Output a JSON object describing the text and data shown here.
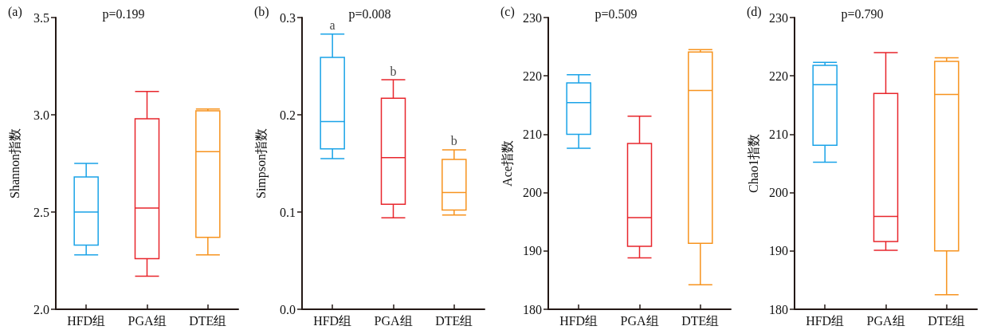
{
  "chart_data": [
    {
      "type": "box",
      "title": "p=0.199",
      "ylabel": "Shannon指数",
      "categories": [
        "HFD组",
        "PGA组",
        "DTE组"
      ],
      "colors": [
        "#1aa3e8",
        "#e8262c",
        "#f7931e"
      ],
      "boxes": [
        {
          "low": 2.28,
          "q1": 2.33,
          "median": 2.5,
          "q3": 2.68,
          "high": 2.75
        },
        {
          "low": 2.17,
          "q1": 2.26,
          "median": 2.52,
          "q3": 2.98,
          "high": 3.12
        },
        {
          "low": 2.28,
          "q1": 2.37,
          "median": 2.81,
          "q3": 3.02,
          "high": 3.03
        }
      ],
      "ylim": [
        2.0,
        3.5
      ],
      "yticks": [
        {
          "value": 2,
          "label": "2.0"
        },
        2.5,
        {
          "value": 3,
          "label": "3.0"
        },
        3.5
      ],
      "annotations": [
        "(a)"
      ]
    },
    {
      "type": "box",
      "title": "p=0.008",
      "ylabel": "Simpson指数",
      "categories": [
        "HFD组",
        "PGA组",
        "DTE组"
      ],
      "colors": [
        "#1aa3e8",
        "#e8262c",
        "#f7931e"
      ],
      "boxes": [
        {
          "low": 0.155,
          "q1": 0.165,
          "median": 0.193,
          "q3": 0.259,
          "high": 0.283
        },
        {
          "low": 0.094,
          "q1": 0.108,
          "median": 0.156,
          "q3": 0.217,
          "high": 0.236
        },
        {
          "low": 0.097,
          "q1": 0.102,
          "median": 0.12,
          "q3": 0.154,
          "high": 0.164
        }
      ],
      "ylim": [
        0,
        0.3
      ],
      "yticks": [
        {
          "value": 0,
          "label": "0.0"
        },
        0.1,
        0.2,
        0.3
      ],
      "annotations": [
        "(b)",
        {
          "text": "a",
          "x": "HFD组",
          "y": 0.283
        },
        {
          "text": "b",
          "x": "PGA组",
          "y": 0.236
        },
        {
          "text": "b",
          "x": "DTE组",
          "y": 0.164
        }
      ]
    },
    {
      "type": "box",
      "title": "p=0.509",
      "ylabel": "Ace指数",
      "categories": [
        "HFD组",
        "PGA组",
        "DTE组"
      ],
      "colors": [
        "#1aa3e8",
        "#e8262c",
        "#f7931e"
      ],
      "boxes": [
        {
          "low": 207.6,
          "q1": 210.0,
          "median": 215.4,
          "q3": 218.8,
          "high": 220.2
        },
        {
          "low": 188.8,
          "q1": 190.8,
          "median": 195.7,
          "q3": 208.4,
          "high": 213.1
        },
        {
          "low": 184.2,
          "q1": 191.3,
          "median": 217.5,
          "q3": 224.1,
          "high": 224.5
        }
      ],
      "ylim": [
        180,
        230
      ],
      "yticks": [
        180,
        190,
        200,
        210,
        220,
        230
      ],
      "annotations": [
        "(c)"
      ]
    },
    {
      "type": "box",
      "title": "p=0.790",
      "ylabel": "Chao1指数",
      "categories": [
        "HFD组",
        "PGA组",
        "DTE组"
      ],
      "colors": [
        "#1aa3e8",
        "#e8262c",
        "#f7931e"
      ],
      "boxes": [
        {
          "low": 205.2,
          "q1": 208.1,
          "median": 218.5,
          "q3": 221.8,
          "high": 222.3
        },
        {
          "low": 190.1,
          "q1": 191.6,
          "median": 195.9,
          "q3": 217.0,
          "high": 224.0
        },
        {
          "low": 182.5,
          "q1": 190.0,
          "median": 216.8,
          "q3": 222.5,
          "high": 223.1
        }
      ],
      "ylim": [
        180,
        230
      ],
      "yticks": [
        180,
        190,
        200,
        210,
        220,
        230
      ],
      "annotations": [
        "(d)"
      ]
    }
  ]
}
